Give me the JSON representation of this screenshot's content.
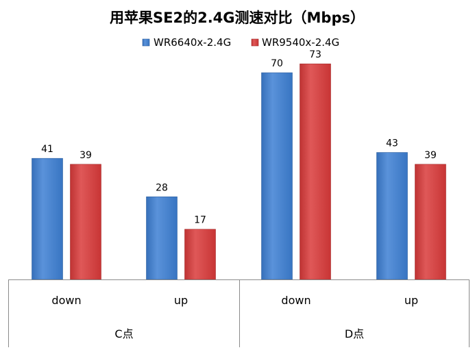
{
  "chart_data": {
    "type": "bar",
    "title": "用苹果SE2的2.4G测速对比（Mbps）",
    "groups": [
      {
        "label": "C点",
        "categories": [
          "down",
          "up"
        ]
      },
      {
        "label": "D点",
        "categories": [
          "down",
          "up"
        ]
      }
    ],
    "categories": [
      "down",
      "up",
      "down",
      "up"
    ],
    "series": [
      {
        "name": "WR6640x-2.4G",
        "color": "#3d7fd3",
        "values": [
          41,
          28,
          70,
          43
        ]
      },
      {
        "name": "WR9540x-2.4G",
        "color": "#d93a3a",
        "values": [
          39,
          17,
          73,
          39
        ]
      }
    ],
    "ylim": [
      0,
      80
    ],
    "grid": false,
    "legend": "top",
    "xlabel": "",
    "ylabel": ""
  }
}
